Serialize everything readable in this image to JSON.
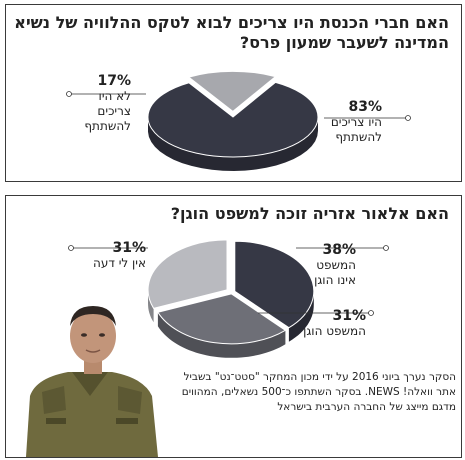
{
  "chart_data": [
    {
      "type": "pie",
      "title": "האם חברי הכנסת היו צריכים לבוא לטקס ההלוויה של נשיא המדינה לשעבר שמעון פרס?",
      "slices": [
        {
          "label": "היו צריכים להשתתף",
          "value": 83,
          "color": "#363845"
        },
        {
          "label": "לא היו צריכים להשתתף",
          "value": 17,
          "color": "#a7a8ad"
        }
      ]
    },
    {
      "type": "pie",
      "title": "האם אלאור אזריה זוכה למשפט הוגן?",
      "slices": [
        {
          "label": "המשפט אינו הוגן",
          "value": 38,
          "color": "#363845"
        },
        {
          "label": "המשפט הוגן",
          "value": 31,
          "color": "#6e6f77"
        },
        {
          "label": "אין לי דעה",
          "value": 31,
          "color": "#b9babf"
        }
      ]
    }
  ],
  "labels": {
    "c1_yes_pct": "83%",
    "c1_yes_text": "היו צריכים\nלהשתתף",
    "c1_no_pct": "17%",
    "c1_no_text": "לא היו\nצריכים\nלהשתתף",
    "c2_unfair_pct": "38%",
    "c2_unfair_text": "המשפט\nאינו הוגן",
    "c2_fair_pct": "31%",
    "c2_fair_text": "המשפט הוגן",
    "c2_none_pct": "31%",
    "c2_none_text": "אין לי דעה"
  },
  "footnote": "הסקר נערך ביוני 2016 על ידי מכון המחקר \"סטט־נט\" בשביל אתר וואלה! NEWS. בסקר השתתפו כ־500 נשאלים, המהווים מדגם מייצג של החברה הערבית בישראל",
  "colors": {
    "dark": "#363845",
    "mid": "#6e6f77",
    "light": "#b9babf",
    "light_alt": "#a7a8ad",
    "border": "#3a3a3a"
  }
}
